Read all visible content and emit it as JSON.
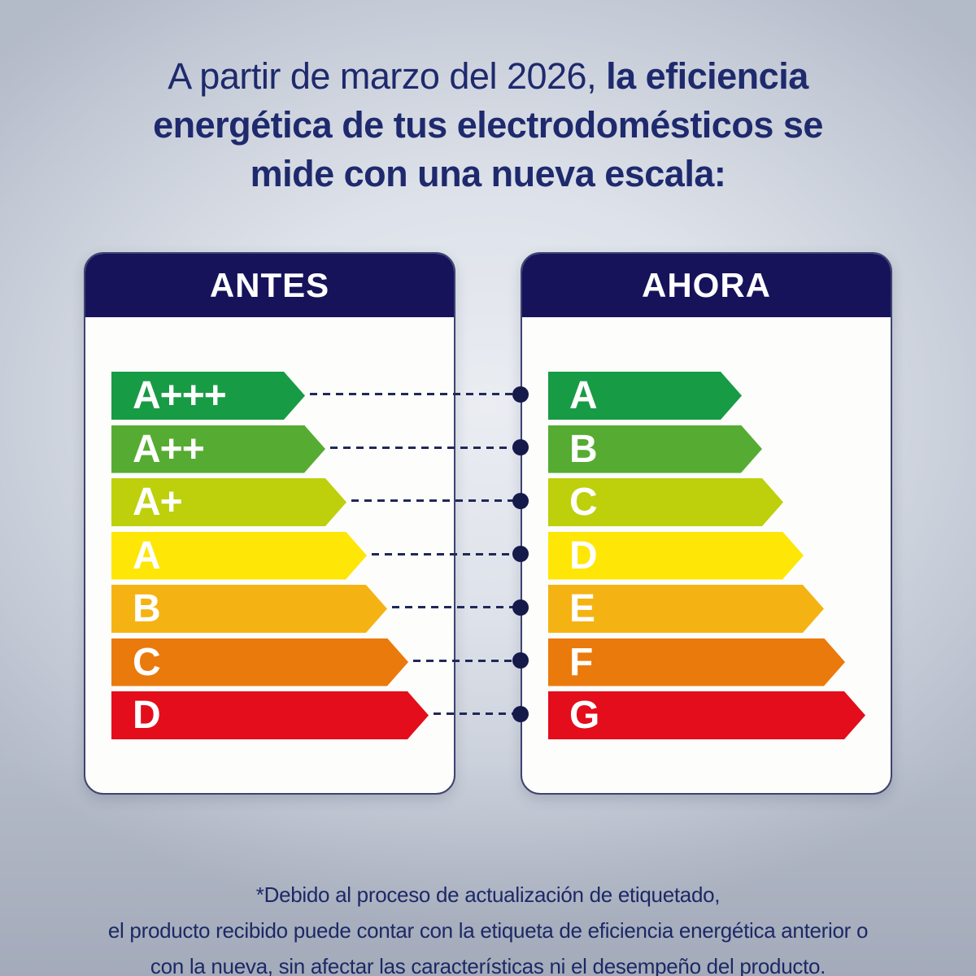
{
  "title": {
    "line1_regular": "A partir de marzo del 2026, ",
    "line1_bold": "la eficiencia",
    "line2_bold": "energética de tus electrodomésticos se",
    "line3_bold": "mide con una nueva escala:"
  },
  "cards": {
    "antes": {
      "title": "ANTES",
      "rows": [
        {
          "label": "A+++",
          "color": "#189b45"
        },
        {
          "label": "A++",
          "color": "#56ac32"
        },
        {
          "label": "A+",
          "color": "#bdd00b"
        },
        {
          "label": "A",
          "color": "#fee606"
        },
        {
          "label": "B",
          "color": "#f5b313"
        },
        {
          "label": "C",
          "color": "#ea7a0c"
        },
        {
          "label": "D",
          "color": "#e30d1c"
        }
      ]
    },
    "ahora": {
      "title": "AHORA",
      "rows": [
        {
          "label": "A",
          "color": "#189b45"
        },
        {
          "label": "B",
          "color": "#56ac32"
        },
        {
          "label": "C",
          "color": "#bdd00b"
        },
        {
          "label": "D",
          "color": "#fee606"
        },
        {
          "label": "E",
          "color": "#f5b313"
        },
        {
          "label": "F",
          "color": "#ea7a0c"
        },
        {
          "label": "G",
          "color": "#e30d1c"
        }
      ]
    }
  },
  "connectors": {
    "line_color": "#20285a",
    "dot_color": "#151a4b",
    "mappings": [
      {
        "from": "A+++",
        "to": "A"
      },
      {
        "from": "A++",
        "to": "B"
      },
      {
        "from": "A+",
        "to": "C"
      },
      {
        "from": "A",
        "to": "D"
      },
      {
        "from": "B",
        "to": "E"
      },
      {
        "from": "C",
        "to": "F"
      },
      {
        "from": "D",
        "to": "G"
      }
    ]
  },
  "footer": {
    "line1": "*Debido al proceso de actualización de etiquetado,",
    "line2": "el producto recibido puede contar con la etiqueta de eficiencia energética anterior o",
    "line3": "con la nueva, sin afectar las características ni el desempeño del producto."
  },
  "colors": {
    "header_navy": "#16135b",
    "title_navy": "#1e2a6d",
    "footer_navy": "#1c2966",
    "card_background": "#fdfdfb",
    "page_background_center": "#eaedf2",
    "page_background_edge": "#b3bac8"
  }
}
